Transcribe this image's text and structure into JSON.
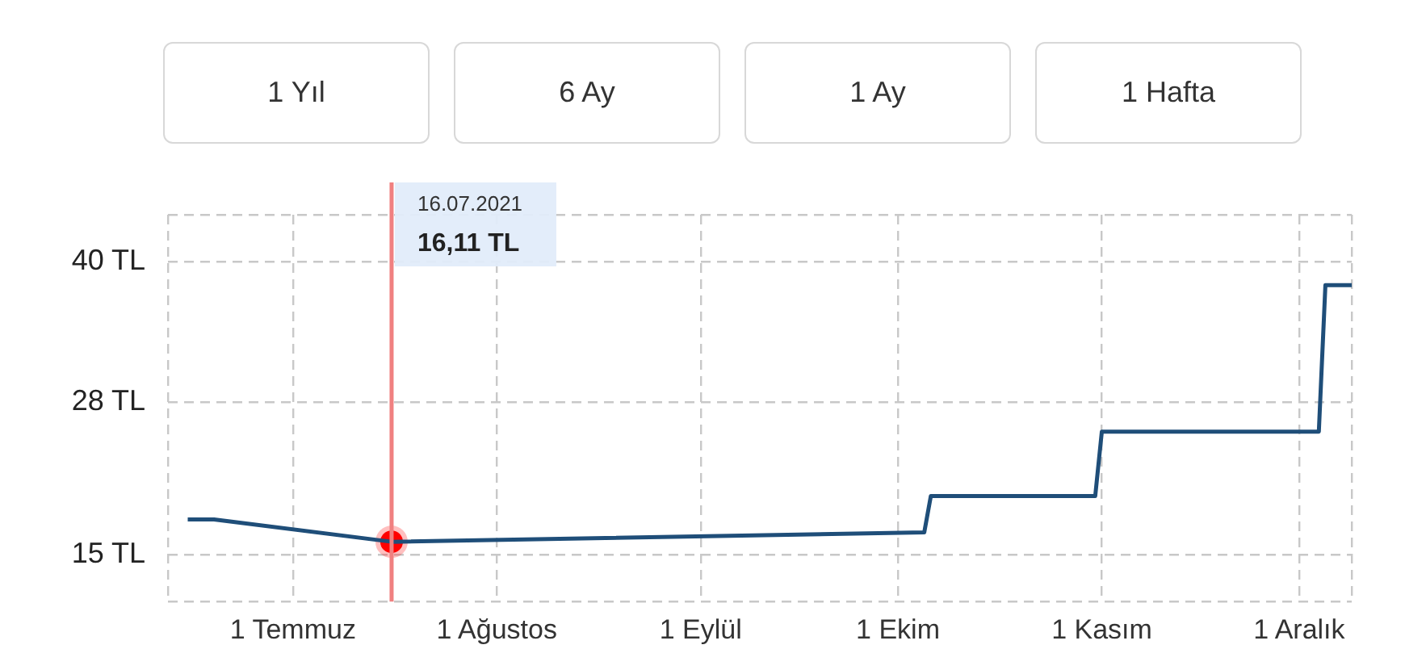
{
  "chart_data": {
    "type": "line",
    "annotations": [
      "1 Yıl",
      "6 Ay",
      "1 Ay",
      "1 Hafta",
      "16.07.2021\n16,11 TL"
    ],
    "series": [
      {
        "color": "#1f4e79",
        "x": [
          "2021-06-15",
          "2021-06-19",
          "2021-07-16",
          "2021-10-05",
          "2021-10-06",
          "2021-10-31",
          "2021-11-01",
          "2021-12-04",
          "2021-12-05",
          "2021-12-09"
        ],
        "values": [
          18.0,
          18.0,
          16.1,
          16.9,
          20.0,
          20.0,
          25.5,
          25.5,
          38.0,
          38.0
        ]
      },
      {
        "type": "scatter",
        "marker": "circle",
        "color": "#ff0000",
        "x": [
          "2021-07-16"
        ],
        "values": [
          16.1
        ]
      }
    ],
    "xlim": [
      "2021-06-12",
      "2021-12-09"
    ],
    "xticks": [
      {
        "value": "2021-06-12",
        "label": null
      },
      {
        "value": "2021-07-01",
        "label": "1 Temmuz"
      },
      {
        "value": "2021-08-01",
        "label": "1 Ağustos"
      },
      {
        "value": "2021-09-01",
        "label": "1 Eylül"
      },
      {
        "value": "2021-10-01",
        "label": "1 Ekim"
      },
      {
        "value": "2021-11-01",
        "label": "1 Kasım"
      },
      {
        "value": "2021-12-01",
        "label": "1 Aralık"
      },
      {
        "value": "2021-12-09",
        "label": null
      }
    ],
    "ylim": [
      11,
      44
    ],
    "yticks": [
      {
        "value": 11,
        "label": null
      },
      {
        "value": 15,
        "label": "15 TL"
      },
      {
        "value": 28,
        "label": "28 TL"
      },
      {
        "value": 40,
        "label": "40 TL"
      },
      {
        "value": 44,
        "label": null
      }
    ],
    "ref_lines": [
      {
        "axis": "x",
        "value": "2021-07-16",
        "color": "#f08080"
      }
    ],
    "grid": true,
    "legend": false,
    "line_style": "solid"
  }
}
